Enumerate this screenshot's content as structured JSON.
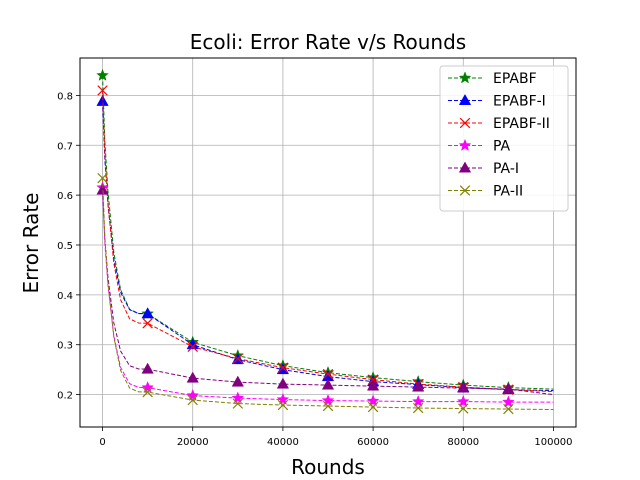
{
  "chart_data": {
    "type": "line",
    "title": "Ecoli: Error Rate v/s Rounds",
    "xlabel": "Rounds",
    "ylabel": "Error Rate",
    "xlim": [
      -5000,
      105000
    ],
    "ylim": [
      0.135,
      0.875
    ],
    "xticks": [
      0,
      20000,
      40000,
      60000,
      80000,
      100000
    ],
    "xtick_labels": [
      "0",
      "20000",
      "40000",
      "60000",
      "80000",
      "100000"
    ],
    "yticks": [
      0.2,
      0.3,
      0.4,
      0.5,
      0.6,
      0.7,
      0.8
    ],
    "ytick_labels": [
      "0.2",
      "0.3",
      "0.4",
      "0.5",
      "0.6",
      "0.7",
      "0.8"
    ],
    "grid": true,
    "legend_position": "top-right",
    "x": [
      1,
      10000,
      20000,
      30000,
      40000,
      50000,
      60000,
      70000,
      80000,
      90000
    ],
    "series": [
      {
        "name": "EPABF",
        "color": "#008000",
        "marker": "star",
        "values": [
          0.84,
          0.362,
          0.305,
          0.278,
          0.258,
          0.244,
          0.234,
          0.226,
          0.219,
          0.214
        ],
        "final": 0.211
      },
      {
        "name": "EPABF-I",
        "color": "#0000ff",
        "marker": "triangle",
        "values": [
          0.788,
          0.362,
          0.3,
          0.27,
          0.25,
          0.236,
          0.226,
          0.22,
          0.214,
          0.21
        ],
        "final": 0.208
      },
      {
        "name": "EPABF-II",
        "color": "#ff0000",
        "marker": "x",
        "values": [
          0.81,
          0.343,
          0.296,
          0.272,
          0.254,
          0.241,
          0.23,
          0.221,
          0.215,
          0.21
        ],
        "final": 0.206
      },
      {
        "name": "PA",
        "color": "#ff00ff",
        "marker": "star",
        "values": [
          0.615,
          0.214,
          0.198,
          0.193,
          0.19,
          0.188,
          0.187,
          0.186,
          0.186,
          0.185
        ],
        "final": 0.185
      },
      {
        "name": "PA-I",
        "color": "#800080",
        "marker": "triangle",
        "values": [
          0.61,
          0.251,
          0.233,
          0.225,
          0.221,
          0.219,
          0.217,
          0.215,
          0.213,
          0.211
        ],
        "final": 0.2
      },
      {
        "name": "PA-II",
        "color": "#808000",
        "marker": "x",
        "values": [
          0.634,
          0.205,
          0.189,
          0.182,
          0.179,
          0.177,
          0.175,
          0.173,
          0.172,
          0.171
        ],
        "final": 0.17
      }
    ]
  }
}
